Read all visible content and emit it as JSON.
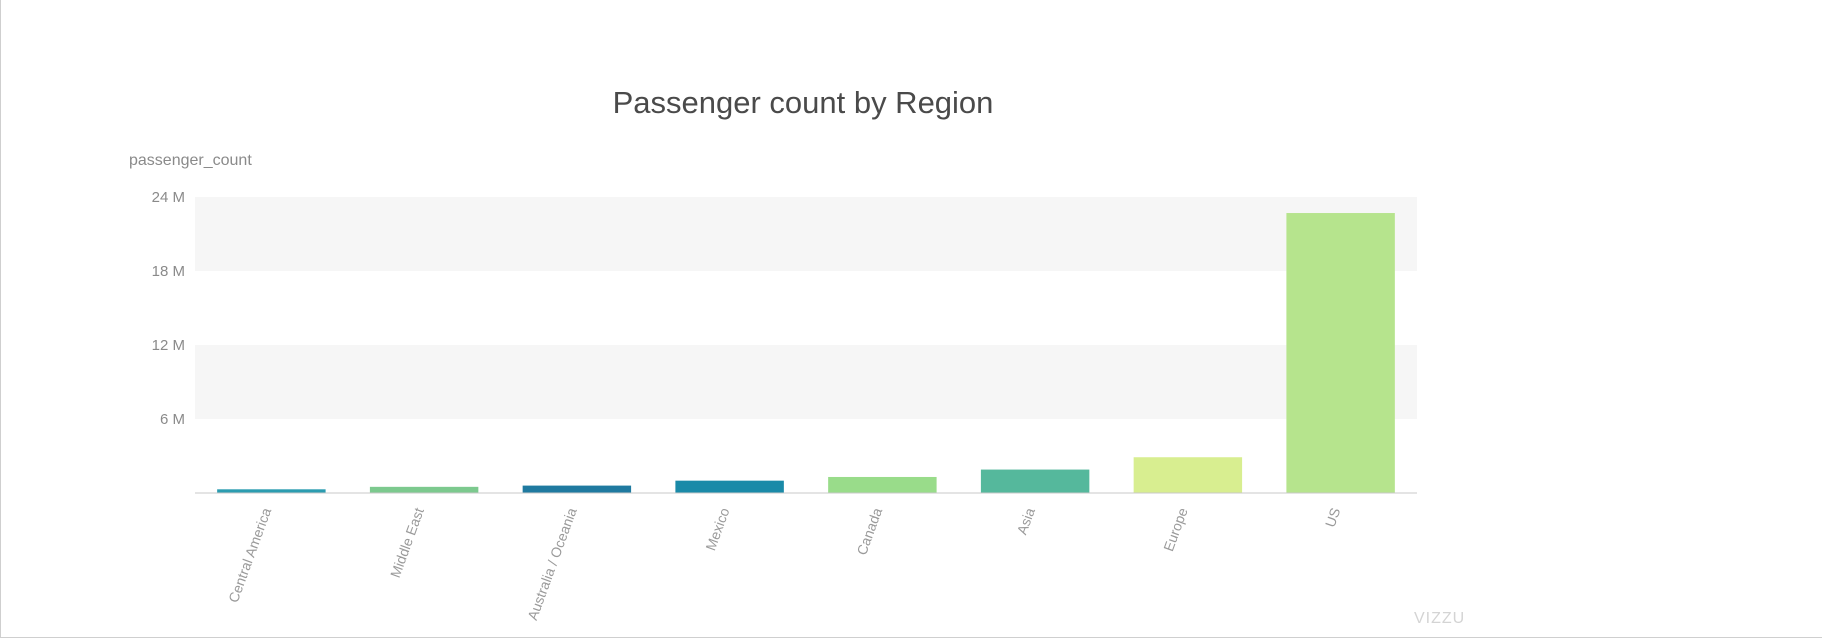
{
  "chart_data": {
    "type": "bar",
    "title": "Passenger count by Region",
    "ylabel": "passenger_count",
    "xlabel": "",
    "ylim": [
      0,
      24000000
    ],
    "yticks": [
      {
        "value": 6000000,
        "label": "6 M"
      },
      {
        "value": 12000000,
        "label": "12 M"
      },
      {
        "value": 18000000,
        "label": "18 M"
      },
      {
        "value": 24000000,
        "label": "24 M"
      }
    ],
    "categories": [
      "Central America",
      "Middle East",
      "Australia / Oceania",
      "Mexico",
      "Canada",
      "Asia",
      "Europe",
      "US"
    ],
    "values": [
      300000,
      500000,
      600000,
      1000000,
      1300000,
      1900000,
      2900000,
      22700000
    ],
    "colors": [
      "#2b9cb0",
      "#7cc98e",
      "#1f7aa0",
      "#1a8aa8",
      "#99dc8a",
      "#55b89c",
      "#d8ee90",
      "#b6e48d"
    ],
    "grid": true,
    "legend": "none"
  },
  "watermark": "VIZZU"
}
